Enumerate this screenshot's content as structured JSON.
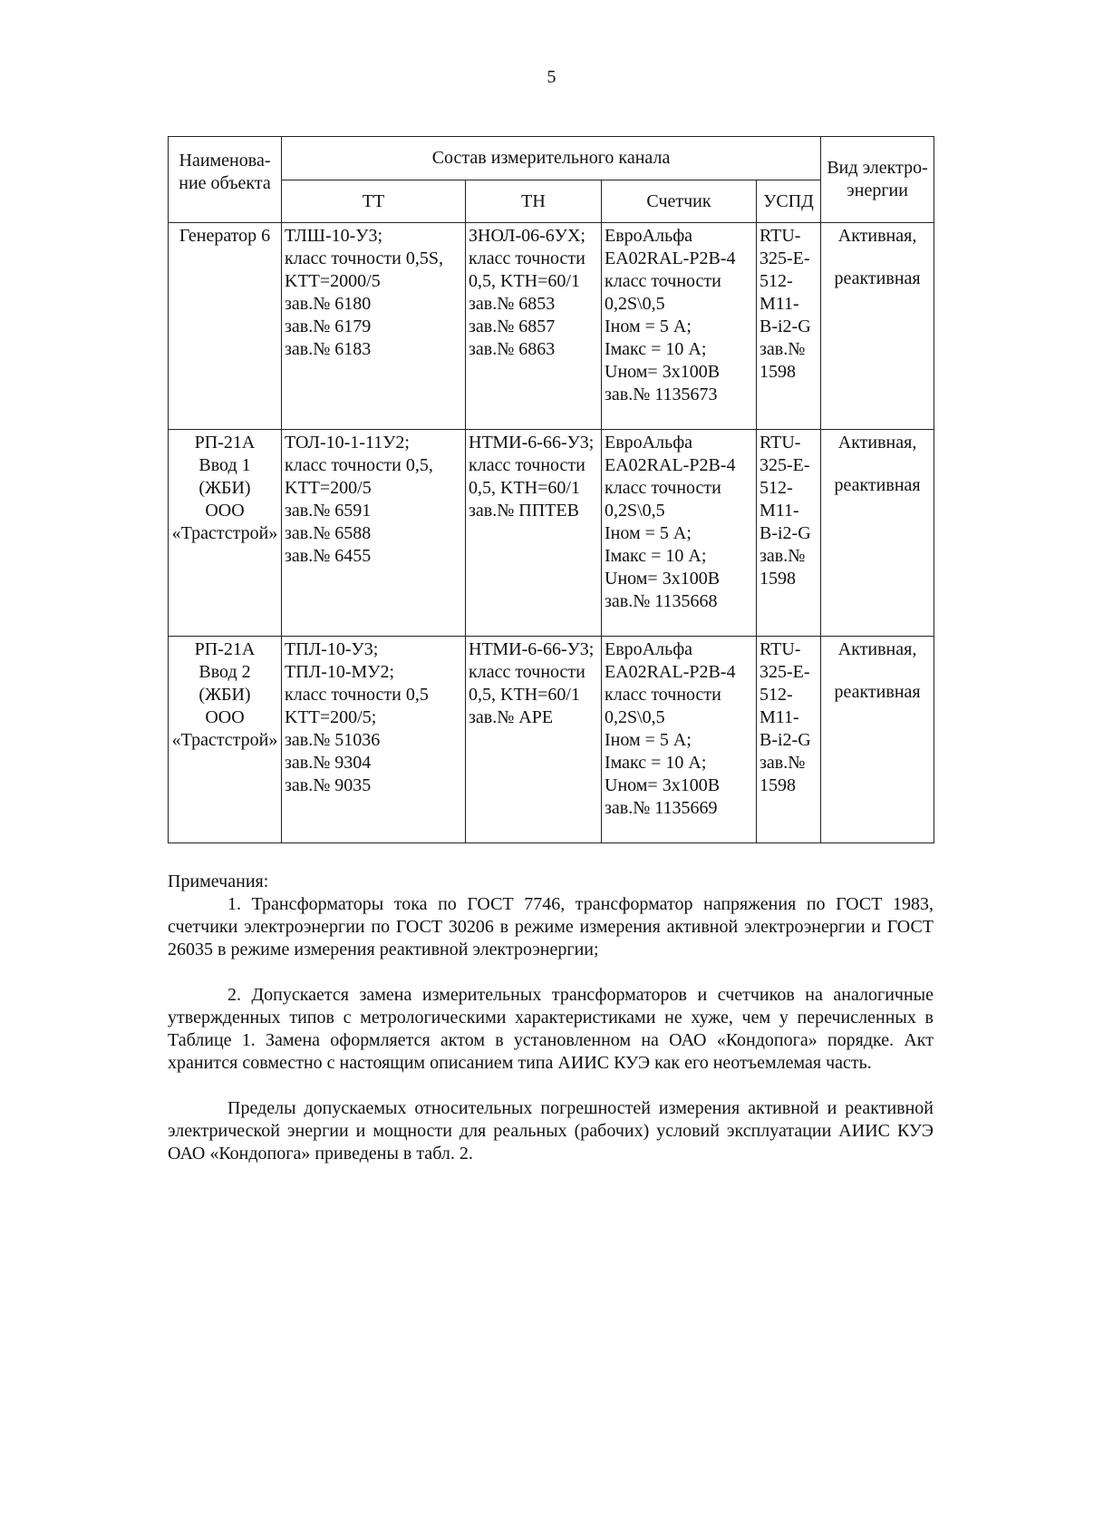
{
  "page_number": "5",
  "table": {
    "headers": {
      "object_name": "Наименова-ние объекта",
      "channel": "Состав измерительного канала",
      "tt": "ТТ",
      "tn": "ТН",
      "meter": "Счетчик",
      "uspd": "УСПД",
      "energy_kind": "Вид электро-энергии"
    },
    "rows": [
      {
        "name": [
          "Генератор 6"
        ],
        "tt": [
          "ТЛШ-10-У3;",
          "класс точности 0,5S,",
          "KТТ=2000/5",
          "зав.№ 6180",
          "зав.№ 6179",
          "зав.№ 6183"
        ],
        "tn": [
          "ЗНОЛ-06-6УХ;",
          "класс точности",
          "0,5, KТН=60/1",
          "зав.№ 6853",
          "зав.№ 6857",
          "зав.№ 6863"
        ],
        "meter": [
          "ЕвроАльфа",
          "EA02RAL-P2B-4",
          "класс точности",
          "0,2S\\0,5",
          "Iном = 5 А;",
          "Iмакс = 10 А;",
          "Uном= 3х100В",
          "зав.№ 1135673"
        ],
        "uspd": [
          "RTU-",
          "325-E-",
          "512-",
          "M11-",
          "B-i2-G",
          "зав.№",
          "1598"
        ],
        "kind": [
          "Активная,",
          "реактивная"
        ]
      },
      {
        "name": [
          "РП-21А",
          "Ввод 1",
          "(ЖБИ)",
          "ООО",
          "«Трастстрой»"
        ],
        "tt": [
          "ТОЛ-10-1-11У2;",
          "класс точности 0,5,",
          "KТТ=200/5",
          "зав.№ 6591",
          "зав.№ 6588",
          "зав.№ 6455"
        ],
        "tn": [
          "НТМИ-6-66-У3;",
          "класс точности",
          "0,5, KТН=60/1",
          "зав.№ ППТЕВ"
        ],
        "meter": [
          "ЕвроАльфа",
          "EA02RAL-P2B-4",
          "класс точности",
          "0,2S\\0,5",
          "Iном = 5 А;",
          "Iмакс = 10 А;",
          "Uном= 3х100В",
          "зав.№ 1135668"
        ],
        "uspd": [
          "RTU-",
          "325-E-",
          "512-",
          "M11-",
          "B-i2-G",
          "зав.№",
          "1598"
        ],
        "kind": [
          "Активная,",
          "реактивная"
        ]
      },
      {
        "name": [
          "РП-21А",
          "Ввод 2",
          "(ЖБИ)",
          "ООО",
          "«Трастстрой»"
        ],
        "tt": [
          "ТПЛ-10-У3;",
          "ТПЛ-10-МУ2;",
          "класс точности 0,5",
          "KТТ=200/5;",
          "зав.№ 51036",
          "зав.№ 9304",
          "зав.№ 9035"
        ],
        "tn": [
          "НТМИ-6-66-У3;",
          "класс точности",
          "0,5, KТН=60/1",
          "зав.№ АРЕ"
        ],
        "meter": [
          "ЕвроАльфа",
          "EA02RAL-P2B-4",
          "класс точности",
          "0,2S\\0,5",
          "Iном = 5 А;",
          "Iмакс = 10 А;",
          "Uном= 3х100В",
          "зав.№ 1135669"
        ],
        "uspd": [
          "RTU-",
          "325-E-",
          "512-",
          "M11-",
          "B-i2-G",
          "зав.№",
          "1598"
        ],
        "kind": [
          "Активная,",
          "реактивная"
        ]
      }
    ]
  },
  "notes": {
    "heading": "Примечания:",
    "items": [
      "1. Трансформаторы тока по ГОСТ 7746, трансформатор напряжения по ГОСТ 1983, счетчики электроэнергии по ГОСТ 30206 в режиме измерения активной электроэнергии и ГОСТ 26035 в режиме измерения реактивной электроэнергии;",
      "2. Допускается замена измерительных трансформаторов и счетчиков на аналогичные утвержденных типов с метрологическими характеристиками не хуже, чем у перечисленных в Таблице 1. Замена оформляется актом в установленном на ОАО «Кондопога» порядке. Акт хранится совместно с настоящим описанием типа АИИС КУЭ как его неотъемлемая часть."
    ],
    "closing": "Пределы допускаемых относительных погрешностей измерения активной и реактивной электрической энергии и мощности для реальных (рабочих) условий эксплуатации АИИС КУЭ ОАО «Кондопога» приведены в табл. 2."
  }
}
